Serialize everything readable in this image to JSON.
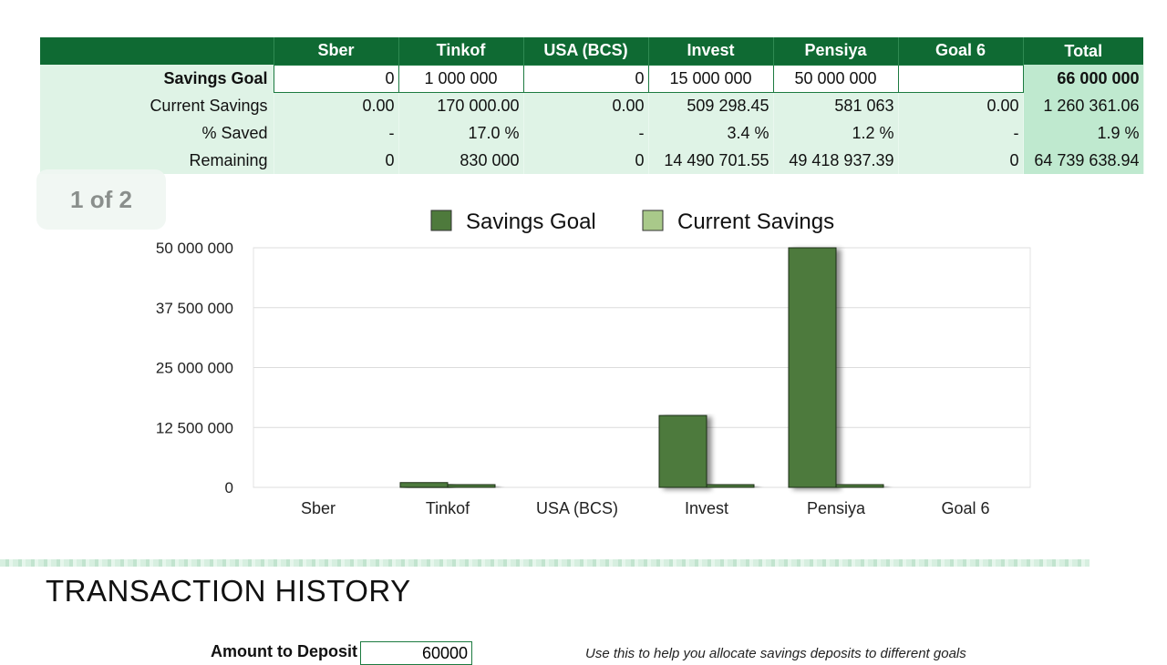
{
  "summary": {
    "columns": [
      "",
      "Sber",
      "Tinkof",
      "USA (BCS)",
      "Invest",
      "Pensiya",
      "Goal 6",
      "Total"
    ],
    "rows": [
      {
        "label": "Savings Goal",
        "cells": [
          "0",
          "1 000 000",
          "0",
          "15 000 000",
          "50 000 000",
          "",
          "66 000 000"
        ]
      },
      {
        "label": "Current Savings",
        "cells": [
          "0.00",
          "170 000.00",
          "0.00",
          "509 298.45",
          "581 063",
          "0.00",
          "1 260 361.06"
        ]
      },
      {
        "label": "% Saved",
        "cells": [
          "-",
          "17.0 %",
          "-",
          "3.4 %",
          "1.2 %",
          "-",
          "1.9 %"
        ]
      },
      {
        "label": "Remaining",
        "cells": [
          "0",
          "830 000",
          "0",
          "14 490 701.55",
          "49 418 937.39",
          "0",
          "64 739 638.94"
        ]
      }
    ]
  },
  "page_badge": "1 of 2",
  "chart_data": {
    "type": "bar",
    "categories": [
      "Sber",
      "Tinkof",
      "USA (BCS)",
      "Invest",
      "Pensiya",
      "Goal 6"
    ],
    "series": [
      {
        "name": "Savings Goal",
        "color": "#4e7a3c",
        "values": [
          0,
          1000000,
          0,
          15000000,
          50000000,
          0
        ]
      },
      {
        "name": "Current Savings",
        "color": "#a9c98a",
        "values": [
          0,
          170000,
          0,
          509298.45,
          581063,
          0
        ]
      }
    ],
    "ylim": [
      0,
      50000000
    ],
    "yticks": [
      "0",
      "12 500 000",
      "25 000 000",
      "37 500 000",
      "50 000 000"
    ],
    "ytick_values": [
      0,
      12500000,
      25000000,
      37500000,
      50000000
    ],
    "legend": "top",
    "grid": true
  },
  "history": {
    "title": "TRANSACTION HISTORY",
    "deposit_label": "Amount to Deposit",
    "deposit_value": "60000",
    "hint": "Use this to help you allocate savings deposits to different goals"
  },
  "colors": {
    "header_green": "#0f6a33",
    "row_bg": "#dff3e6",
    "total_bg": "#bfe9cf",
    "bar_dark": "#4e7a3c",
    "bar_light": "#a9c98a"
  }
}
